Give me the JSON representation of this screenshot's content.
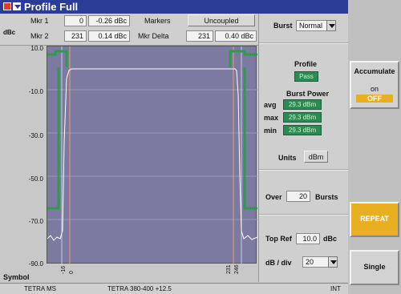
{
  "title": "Profile Full",
  "markers": {
    "mkr1_label": "Mkr 1",
    "mkr1_pos": "0",
    "mkr1_val": "-0.26 dBc",
    "mkr2_label": "Mkr 2",
    "mkr2_pos": "231",
    "mkr2_val": "0.14 dBc",
    "markers_label": "Markers",
    "coupling": "Uncoupled",
    "delta_label": "Mkr Delta",
    "delta_pos": "231",
    "delta_val": "0.40 dBc"
  },
  "burst": {
    "label": "Burst",
    "value": "Normal"
  },
  "axis": {
    "y_unit": "dBc",
    "x_label": "Symbol",
    "y_ticks": [
      "10.0",
      "-10.0",
      "-30.0",
      "-50.0",
      "-70.0",
      "-90.0"
    ],
    "x_ticks": [
      "-16",
      "0",
      "231",
      "246"
    ]
  },
  "profile": {
    "label": "Profile",
    "result": "Pass",
    "burst_power_label": "Burst Power",
    "avg_label": "avg",
    "avg": "29.3 dBm",
    "max_label": "max",
    "max": "29.3 dBm",
    "min_label": "min",
    "min": "29.3 dBm",
    "units_label": "Units",
    "units": "dBm"
  },
  "over": {
    "label": "Over",
    "value": "20",
    "suffix": "Bursts"
  },
  "topref": {
    "label": "Top Ref",
    "value": "10.0",
    "unit": "dBc"
  },
  "dbdiv": {
    "label": "dB / div",
    "value": "20"
  },
  "softkeys": {
    "accumulate": "Accumulate",
    "on": "on",
    "off": "OFF",
    "repeat": "REPEAT",
    "single": "Single"
  },
  "status": {
    "left": "TETRA MS",
    "mid": "TETRA 380-400 +12.5",
    "right": "INT"
  },
  "colors": {
    "plot_bg": "#7c7aa0",
    "mask": "#2e9a4e",
    "trace": "#ffffff",
    "title_bar": "#2a3c96"
  }
}
